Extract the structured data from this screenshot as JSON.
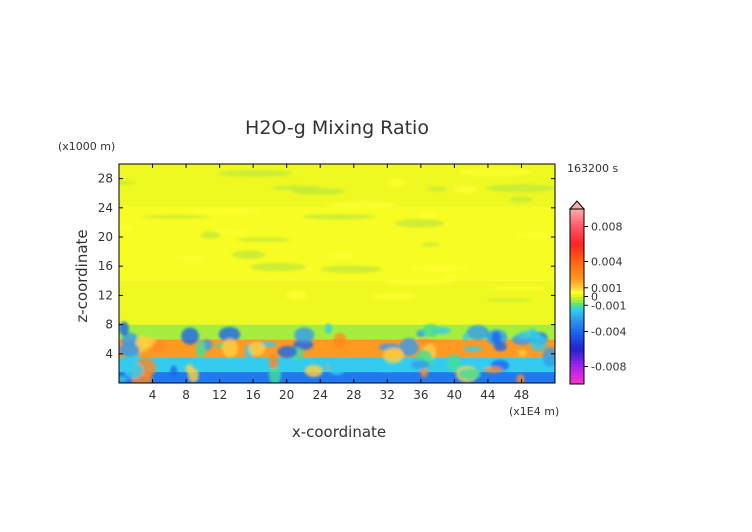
{
  "chart_data": {
    "type": "heatmap",
    "title": "H2O-g Mixing Ratio",
    "xlabel": "x-coordinate",
    "ylabel": "z-coordinate",
    "x_unit": "(x1E4 m)",
    "y_unit": "(x1000 m)",
    "time_label": "163200 s",
    "xlim": [
      0,
      52
    ],
    "ylim": [
      0,
      30
    ],
    "x_ticks": [
      4,
      8,
      12,
      16,
      20,
      24,
      28,
      32,
      36,
      40,
      44,
      48
    ],
    "y_ticks": [
      4,
      8,
      12,
      16,
      20,
      24,
      28
    ],
    "colorbar": {
      "range": [
        -0.01,
        0.01
      ],
      "tick_labels": [
        {
          "value": 0.008,
          "label": "0.008"
        },
        {
          "value": 0.004,
          "label": "0.004"
        },
        {
          "value": 0.001,
          "label": "0.001"
        },
        {
          "value": 0.0,
          "label": "0"
        },
        {
          "value": -0.001,
          "label": "-0.001"
        },
        {
          "value": -0.004,
          "label": "-0.004"
        },
        {
          "value": -0.008,
          "label": "-0.008"
        }
      ],
      "extend": "max"
    },
    "bands": [
      {
        "z_range": [
          0,
          1.5
        ],
        "value": -0.0035
      },
      {
        "z_range": [
          1.5,
          3.5
        ],
        "value": -0.0015
      },
      {
        "z_range": [
          3.5,
          6
        ],
        "value": 0.002
      },
      {
        "z_range": [
          6,
          8
        ],
        "value": -0.0004
      },
      {
        "z_range": [
          8,
          14
        ],
        "value": 0.0003
      },
      {
        "z_range": [
          14,
          24
        ],
        "value": 0.0004
      },
      {
        "z_range": [
          24,
          30
        ],
        "value": 0.0003
      }
    ],
    "colors": {
      "background": "#ffffff",
      "axis": "#000000",
      "text": "#333333"
    },
    "grid": false
  }
}
